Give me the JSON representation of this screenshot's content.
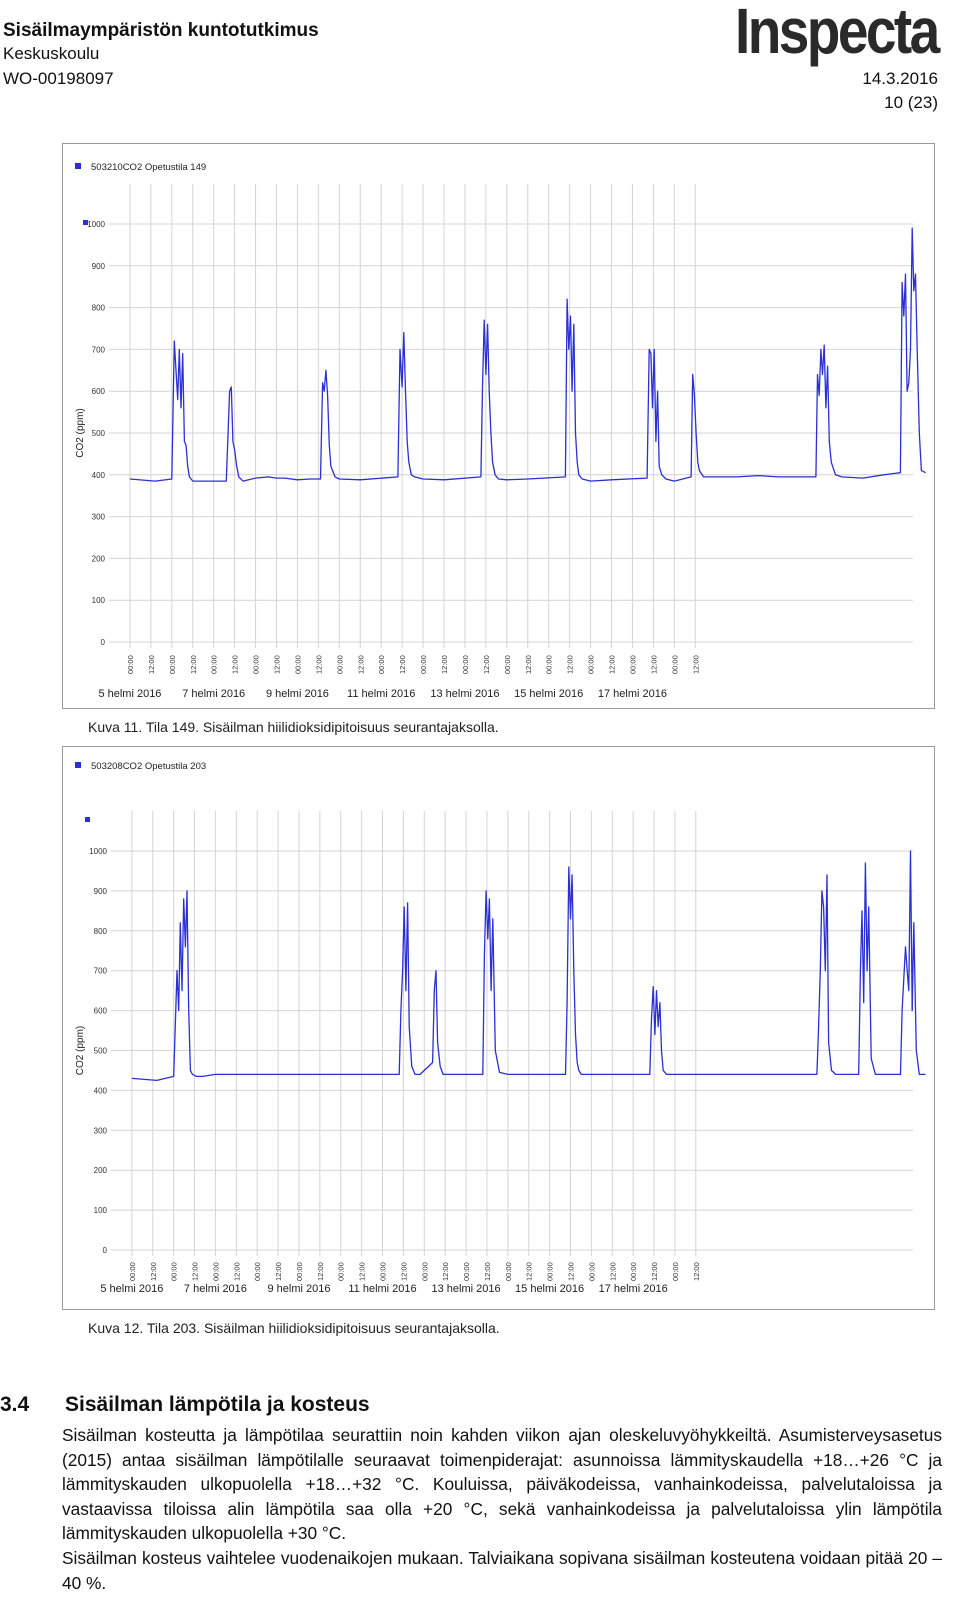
{
  "header": {
    "title": "Sisäilmaympäristön kuntotutkimus",
    "subtitle": "Keskuskoulu",
    "code": "WO-00198097",
    "logo": "Inspecta",
    "date": "14.3.2016",
    "page": "10 (23)"
  },
  "charts": [
    {
      "legend": "503210CO2 Opetustila 149",
      "caption": "Kuva 11. Tila 149. Sisäilman hiilidioksidipitoisuus seurantajaksolla.",
      "series_color": "#2b2fd4"
    },
    {
      "legend": "503208CO2 Opetustila 203",
      "caption": "Kuva 12. Tila 203. Sisäilman hiilidioksidipitoisuus seurantajaksolla.",
      "series_color": "#2b2fd4"
    }
  ],
  "chart_data": [
    {
      "type": "line",
      "series": [
        {
          "name": "503210CO2 Opetustila 149",
          "x": [
            0,
            0.6,
            1,
            1.06,
            1.1,
            1.14,
            1.18,
            1.22,
            1.26,
            1.3,
            1.34,
            1.38,
            1.42,
            1.5,
            1.6,
            2,
            2.3,
            2.38,
            2.42,
            2.46,
            2.5,
            2.55,
            2.6,
            2.7,
            3,
            3.3,
            3.5,
            3.7,
            4,
            4.3,
            4.55,
            4.6,
            4.64,
            4.68,
            4.72,
            4.76,
            4.8,
            4.9,
            5,
            5.5,
            6.4,
            6.45,
            6.5,
            6.54,
            6.58,
            6.62,
            6.66,
            6.72,
            6.8,
            7,
            7.5,
            8.38,
            8.42,
            8.46,
            8.5,
            8.54,
            8.58,
            8.62,
            8.66,
            8.72,
            8.8,
            9,
            9.5,
            10.4,
            10.44,
            10.48,
            10.52,
            10.56,
            10.6,
            10.64,
            10.68,
            10.72,
            10.8,
            11,
            11.5,
            12.35,
            12.4,
            12.44,
            12.48,
            12.52,
            12.56,
            12.6,
            12.64,
            12.7,
            12.8,
            13,
            13.4,
            13.44,
            13.48,
            13.52,
            13.56,
            13.6,
            13.7,
            14,
            14.5,
            15,
            15.5,
            16.38,
            16.42,
            16.46,
            16.5,
            16.54,
            16.58,
            16.62,
            16.66,
            16.7,
            16.75,
            16.85,
            17,
            17.5,
            18,
            18.4,
            18.44,
            18.48,
            18.52,
            18.56,
            18.6,
            18.64,
            18.68,
            18.72,
            18.76,
            18.8,
            18.85,
            18.9,
            19
          ],
          "values": [
            390,
            385,
            390,
            720,
            650,
            580,
            700,
            560,
            690,
            480,
            470,
            420,
            395,
            385,
            385,
            385,
            385,
            600,
            610,
            480,
            460,
            420,
            395,
            385,
            392,
            395,
            392,
            392,
            388,
            390,
            390,
            620,
            600,
            650,
            590,
            470,
            420,
            395,
            390,
            388,
            395,
            700,
            610,
            740,
            600,
            480,
            430,
            400,
            395,
            390,
            388,
            395,
            610,
            770,
            640,
            760,
            600,
            500,
            430,
            400,
            390,
            388,
            390,
            395,
            820,
            700,
            780,
            600,
            760,
            500,
            430,
            400,
            390,
            385,
            388,
            392,
            700,
            690,
            560,
            700,
            480,
            600,
            420,
            400,
            390,
            385,
            395,
            640,
            590,
            500,
            430,
            410,
            395,
            395,
            395,
            398,
            395,
            395,
            640,
            590,
            700,
            640,
            710,
            560,
            660,
            480,
            430,
            400,
            395,
            392,
            400,
            405,
            860,
            780,
            880,
            600,
            620,
            700,
            990,
            840,
            880,
            700,
            500,
            410,
            405
          ]
        }
      ],
      "ylabel": "CO2 (ppm)",
      "ylim": [
        0,
        1000
      ],
      "yticks": [
        0,
        100,
        200,
        300,
        400,
        500,
        600,
        700,
        800,
        900,
        1000
      ],
      "xtick_labels": [
        "00:00",
        "12:00",
        "00:00",
        "12:00",
        "00:00",
        "12:00",
        "00:00",
        "12:00",
        "00:00",
        "12:00",
        "00:00",
        "12:00",
        "00:00",
        "12:00",
        "00:00",
        "12:00",
        "00:00",
        "12:00",
        "00:00",
        "12:00",
        "00:00",
        "12:00",
        "00:00",
        "12:00",
        "00:00",
        "12:00",
        "00:00",
        "12:00"
      ],
      "date_labels": [
        "5 helmi 2016",
        "7 helmi 2016",
        "9 helmi 2016",
        "11 helmi 2016",
        "13 helmi 2016",
        "15 helmi 2016",
        "17 helmi 2016"
      ],
      "grid": true
    },
    {
      "type": "line",
      "series": [
        {
          "name": "503208CO2 Opetustila 203",
          "x": [
            0,
            0.6,
            1,
            1.08,
            1.12,
            1.16,
            1.2,
            1.24,
            1.28,
            1.32,
            1.36,
            1.4,
            1.45,
            1.55,
            1.7,
            2,
            3,
            3.5,
            4,
            4.5,
            5,
            5.5,
            6.4,
            6.44,
            6.48,
            6.52,
            6.56,
            6.6,
            6.64,
            6.7,
            6.78,
            6.9,
            7.2,
            7.24,
            7.28,
            7.32,
            7.38,
            7.45,
            7.6,
            8.4,
            8.44,
            8.48,
            8.52,
            8.56,
            8.6,
            8.64,
            8.7,
            8.8,
            9,
            10.38,
            10.42,
            10.46,
            10.5,
            10.54,
            10.58,
            10.62,
            10.66,
            10.7,
            10.76,
            10.85,
            11,
            12.4,
            12.44,
            12.48,
            12.52,
            12.56,
            12.6,
            12.64,
            12.68,
            12.72,
            12.8,
            13,
            13.5,
            14,
            14.5,
            15,
            16.4,
            16.44,
            16.48,
            16.52,
            16.56,
            16.6,
            16.64,
            16.68,
            16.75,
            16.85,
            17,
            17.4,
            17.44,
            17.48,
            17.52,
            17.56,
            17.6,
            17.64,
            17.7,
            17.8,
            18,
            18.4,
            18.44,
            18.48,
            18.52,
            18.56,
            18.6,
            18.64,
            18.68,
            18.72,
            18.78,
            18.85,
            19
          ],
          "values": [
            430,
            425,
            435,
            700,
            600,
            820,
            650,
            880,
            760,
            900,
            600,
            450,
            440,
            435,
            435,
            440,
            440,
            440,
            440,
            440,
            440,
            440,
            440,
            600,
            700,
            860,
            650,
            870,
            560,
            460,
            440,
            440,
            470,
            650,
            700,
            520,
            460,
            440,
            440,
            440,
            740,
            900,
            780,
            880,
            650,
            830,
            500,
            445,
            440,
            440,
            620,
            960,
            830,
            940,
            700,
            540,
            470,
            450,
            440,
            440,
            440,
            440,
            580,
            660,
            540,
            650,
            560,
            620,
            500,
            450,
            440,
            440,
            440,
            440,
            440,
            440,
            440,
            560,
            700,
            900,
            860,
            700,
            940,
            520,
            450,
            440,
            440,
            440,
            700,
            850,
            620,
            970,
            700,
            860,
            480,
            440,
            440,
            440,
            600,
            680,
            760,
            700,
            650,
            1000,
            600,
            820,
            500,
            440,
            440
          ]
        }
      ],
      "ylabel": "CO2 (ppm)",
      "ylim": [
        0,
        1000
      ],
      "yticks": [
        0,
        100,
        200,
        300,
        400,
        500,
        600,
        700,
        800,
        900,
        1000
      ],
      "xtick_labels": [
        "00:00",
        "12:00",
        "00:00",
        "12:00",
        "00:00",
        "12:00",
        "00:00",
        "12:00",
        "00:00",
        "12:00",
        "00:00",
        "12:00",
        "00:00",
        "12:00",
        "00:00",
        "12:00",
        "00:00",
        "12:00",
        "00:00",
        "12:00",
        "00:00",
        "12:00",
        "00:00",
        "12:00",
        "00:00",
        "12:00",
        "00:00",
        "12:00"
      ],
      "date_labels": [
        "5 helmi 2016",
        "7 helmi 2016",
        "9 helmi 2016",
        "11 helmi 2016",
        "13 helmi 2016",
        "15 helmi 2016",
        "17 helmi 2016"
      ],
      "grid": true
    }
  ],
  "section": {
    "number": "3.4",
    "title": "Sisäilman lämpötila ja kosteus",
    "paragraphs": [
      "Sisäilman kosteutta ja lämpötilaa seurattiin noin kahden viikon ajan oleskeluvyöhykkeiltä. Asumisterveysasetus (2015) antaa sisäilman lämpötilalle seuraavat toimenpiderajat: asunnoissa lämmityskaudella +18…+26 °C ja lämmityskauden ulkopuolella +18…+32 °C. Kouluissa, päiväkodeissa, vanhainkodeissa, palvelutaloissa ja vastaavissa tiloissa alin lämpötila saa olla +20 °C, sekä vanhainkodeissa ja palvelutaloissa ylin lämpötila lämmityskauden ulkopuolella +30 °C.",
      "Sisäilman kosteus vaihtelee vuodenaikojen mukaan. Talviaikana sopivana sisäilman kosteutena voidaan pitää 20 – 40 %."
    ]
  }
}
